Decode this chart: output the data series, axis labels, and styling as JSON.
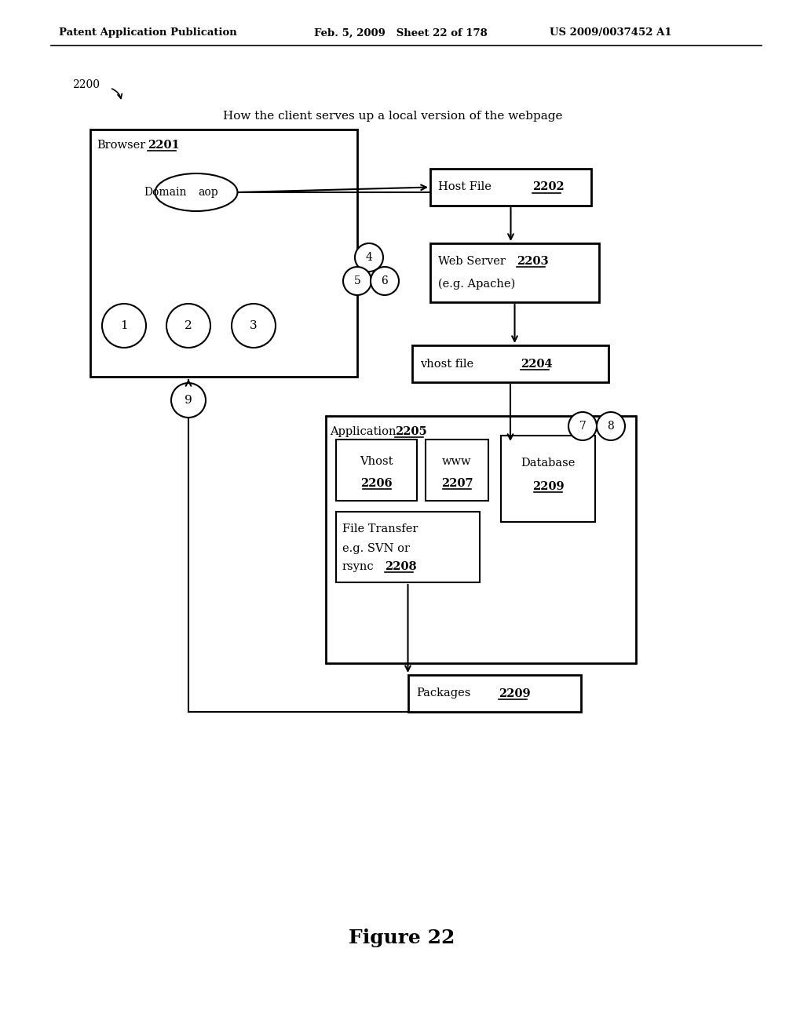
{
  "bg_color": "#ffffff",
  "header_left": "Patent Application Publication",
  "header_mid": "Feb. 5, 2009   Sheet 22 of 178",
  "header_right": "US 2009/0037452 A1",
  "figure_label": "Figure 22",
  "diagram_ref": "2200",
  "title": "How the client serves up a local version of the webpage",
  "browser_label_text": "Browser",
  "browser_label_num": "2201",
  "domain_text": "Domain",
  "domain_num": "aop",
  "host_file_text": "Host File",
  "host_file_num": "2202",
  "web_server_line1": "Web Server",
  "web_server_num": "2203",
  "web_server_line2": "(e.g. Apache)",
  "vhost_file_text": "vhost file",
  "vhost_file_num": "2204",
  "application_text": "Application",
  "application_num": "2205",
  "vhost_box_line1": "Vhost",
  "vhost_box_num": "2206",
  "www_box_line1": "www",
  "www_box_num": "2207",
  "file_transfer_line1": "File Transfer",
  "file_transfer_line2": "e.g. SVN or",
  "file_transfer_line3": "rsync",
  "file_transfer_num": "2208",
  "database_line1": "Database",
  "database_num": "2209",
  "packages_text": "Packages",
  "packages_num": "2209",
  "circles_browser": [
    "1",
    "2",
    "3"
  ],
  "circles_stack": [
    "4",
    "5",
    "6"
  ],
  "circles_right": [
    "7",
    "8"
  ],
  "circle_nine": "9"
}
